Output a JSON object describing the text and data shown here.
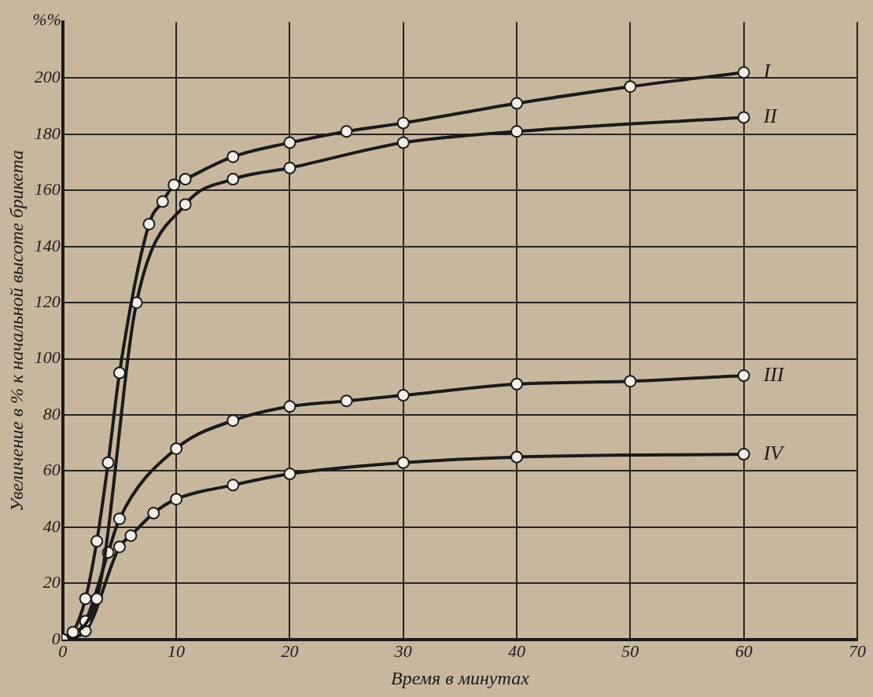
{
  "chart_data": {
    "type": "line",
    "xlabel": "Время в минутах",
    "ylabel": "Увеличение в % к начальной высоте брикета",
    "annotations": [
      "%%"
    ],
    "xlim": [
      0,
      70
    ],
    "xticks": [
      0,
      10,
      20,
      30,
      40,
      50,
      60,
      70
    ],
    "ylim": [
      0,
      220
    ],
    "yticks": [
      0,
      20,
      40,
      60,
      80,
      100,
      120,
      140,
      160,
      180,
      200
    ],
    "grid": true,
    "legend": false,
    "marker": "circle",
    "line_style": "solid",
    "series": [
      {
        "name": "I",
        "color": "#1a1a1a",
        "x": [
          0,
          0.9,
          2,
          3,
          4,
          5,
          7.6,
          8.8,
          9.8,
          10.8,
          15,
          20,
          25,
          30,
          40,
          50,
          60
        ],
        "values": [
          0,
          2.6,
          14.5,
          35,
          63,
          95,
          148,
          156,
          162,
          164,
          172,
          177,
          181,
          184,
          191,
          197,
          202
        ]
      },
      {
        "name": "II",
        "color": "#1a1a1a",
        "x": [
          0,
          3,
          6.5,
          10.8,
          15,
          20,
          30,
          40,
          60
        ],
        "values": [
          0,
          14.5,
          120,
          155,
          164,
          168,
          177,
          181,
          186
        ]
      },
      {
        "name": "III",
        "color": "#1a1a1a",
        "x": [
          0,
          2,
          4,
          5,
          10,
          15,
          20,
          25,
          30,
          40,
          50,
          60
        ],
        "values": [
          0,
          6.5,
          31,
          43,
          68,
          78,
          83,
          85,
          87,
          91,
          92,
          94
        ]
      },
      {
        "name": "IV",
        "color": "#1a1a1a",
        "x": [
          0,
          2,
          5,
          6,
          8,
          10,
          15,
          20,
          30,
          40,
          60
        ],
        "values": [
          0,
          3,
          33,
          37,
          45,
          50,
          55,
          59,
          63,
          65,
          66
        ]
      }
    ]
  }
}
